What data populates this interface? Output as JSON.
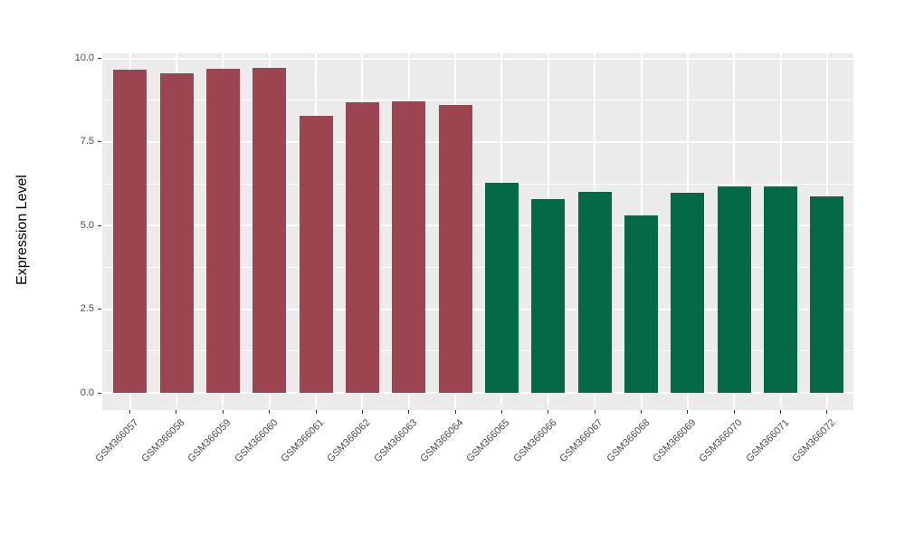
{
  "figure": {
    "background_color": "#FFFFFF",
    "panel_background_color": "#EBEBEB",
    "gridline_color": "#FFFFFF",
    "axis_text_color": "#4D4D4D",
    "axis_title_color": "#000000",
    "tick_mark_color": "#333333"
  },
  "chart_data": {
    "type": "bar",
    "title": "",
    "xlabel": "",
    "ylabel": "Expression Level",
    "categories": [
      "GSM366057",
      "GSM366058",
      "GSM366059",
      "GSM366060",
      "GSM366061",
      "GSM366062",
      "GSM366063",
      "GSM366064",
      "GSM366065",
      "GSM366066",
      "GSM366067",
      "GSM366068",
      "GSM366069",
      "GSM366070",
      "GSM366071",
      "GSM366072"
    ],
    "values": [
      9.65,
      9.55,
      9.68,
      9.73,
      8.27,
      8.7,
      8.72,
      8.62,
      6.27,
      5.8,
      6.0,
      5.3,
      5.97,
      6.17,
      6.16,
      5.88
    ],
    "groups": [
      "groupA",
      "groupA",
      "groupA",
      "groupA",
      "groupA",
      "groupA",
      "groupA",
      "groupA",
      "groupB",
      "groupB",
      "groupB",
      "groupB",
      "groupB",
      "groupB",
      "groupB",
      "groupB"
    ],
    "group_colors": {
      "groupA": "#9C4450",
      "groupB": "#036947"
    },
    "y_tick_labels": [
      "0.0",
      "2.5",
      "5.0",
      "7.5",
      "10.0"
    ],
    "y_tick_values": [
      0,
      2.5,
      5,
      7.5,
      10
    ],
    "y_minor_tick_values": [
      1.25,
      3.75,
      6.25,
      8.75
    ],
    "ylim": [
      -0.5,
      10.2
    ],
    "x_tick_angle_deg": 45,
    "grid": true,
    "legend": "none"
  }
}
